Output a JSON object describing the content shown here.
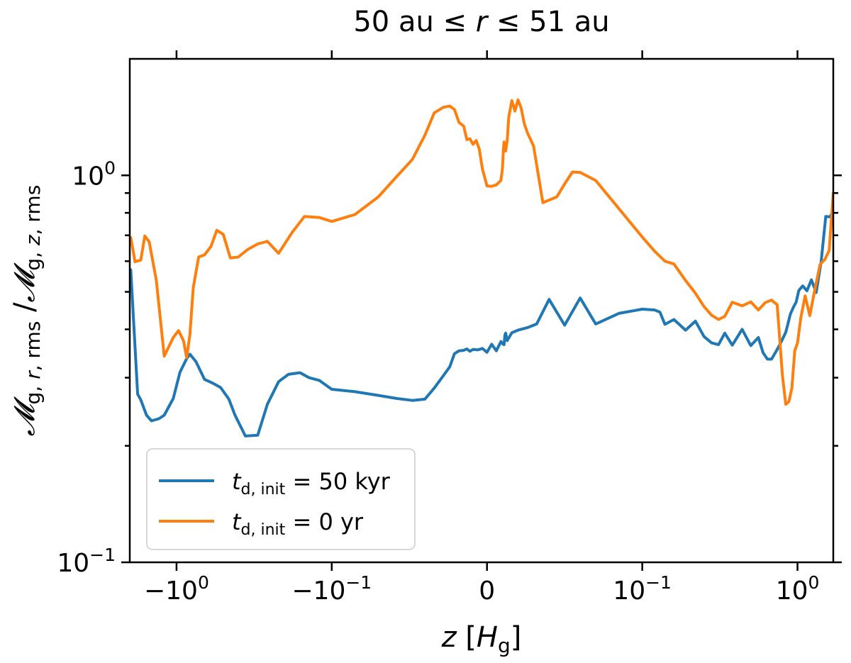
{
  "chart_data": {
    "type": "line",
    "title": "50 au ≤ r ≤ 51 au",
    "xlabel": "z [H_g]",
    "ylabel": "M_g,r,rms / M_g,z,rms",
    "x_scale": "symlog",
    "y_scale": "log",
    "xlim": [
      -2.0,
      1.7
    ],
    "ylim": [
      0.1,
      2.0
    ],
    "x_tick_labels": [
      {
        "value": -1.0,
        "base": "−10",
        "exp": "0"
      },
      {
        "value": -0.1,
        "base": "−10",
        "exp": "−1"
      },
      {
        "value": 0.0,
        "base": "0",
        "exp": ""
      },
      {
        "value": 0.1,
        "base": "10",
        "exp": "−1"
      },
      {
        "value": 1.0,
        "base": "10",
        "exp": "0"
      }
    ],
    "y_tick_labels": [
      {
        "value": 1.0,
        "base": "10",
        "exp": "0"
      },
      {
        "value": 0.1,
        "base": "10",
        "exp": "−1"
      }
    ],
    "grid": false,
    "legend_position": "lower-left",
    "series": [
      {
        "name": "t_d,init = 50 kyr",
        "legend": {
          "italic": "t",
          "sub": "d, init",
          "rest": " = 50 kyr"
        },
        "color": "#1f77b4",
        "x": [
          -1.97,
          -1.78,
          -1.7,
          -1.56,
          -1.45,
          -1.3,
          -1.2,
          -1.05,
          -0.95,
          -0.86,
          -0.82,
          -0.75,
          -0.66,
          -0.58,
          -0.52,
          -0.46,
          -0.42,
          -0.36,
          -0.3,
          -0.26,
          -0.22,
          -0.19,
          -0.16,
          -0.14,
          -0.12,
          -0.1,
          -0.085,
          -0.07,
          -0.058,
          -0.048,
          -0.04,
          -0.034,
          -0.028,
          -0.024,
          -0.021,
          -0.018,
          -0.015,
          -0.013,
          -0.011,
          -0.009,
          -0.006,
          -0.003,
          0.0,
          0.003,
          0.006,
          0.009,
          0.01,
          0.011,
          0.0115,
          0.012,
          0.013,
          0.014,
          0.016,
          0.02,
          0.026,
          0.032,
          0.04,
          0.05,
          0.06,
          0.07,
          0.085,
          0.1,
          0.12,
          0.13,
          0.14,
          0.16,
          0.19,
          0.22,
          0.25,
          0.28,
          0.31,
          0.34,
          0.38,
          0.44,
          0.5,
          0.56,
          0.6,
          0.64,
          0.68,
          0.72,
          0.76,
          0.8,
          0.84,
          0.87,
          0.9,
          0.94,
          0.98,
          1.02,
          1.08,
          1.15,
          1.23,
          1.32,
          1.42,
          1.52,
          1.62,
          1.7
        ],
        "y": [
          0.57,
          0.272,
          0.263,
          0.24,
          0.232,
          0.235,
          0.24,
          0.265,
          0.31,
          0.336,
          0.345,
          0.33,
          0.297,
          0.29,
          0.283,
          0.264,
          0.24,
          0.212,
          0.213,
          0.256,
          0.293,
          0.306,
          0.309,
          0.3,
          0.295,
          0.28,
          0.276,
          0.27,
          0.265,
          0.262,
          0.264,
          0.282,
          0.304,
          0.32,
          0.346,
          0.352,
          0.353,
          0.356,
          0.351,
          0.355,
          0.354,
          0.357,
          0.349,
          0.366,
          0.352,
          0.372,
          0.367,
          0.365,
          0.386,
          0.391,
          0.374,
          0.38,
          0.392,
          0.398,
          0.404,
          0.413,
          0.478,
          0.41,
          0.482,
          0.413,
          0.44,
          0.451,
          0.449,
          0.443,
          0.412,
          0.424,
          0.398,
          0.42,
          0.383,
          0.369,
          0.365,
          0.391,
          0.364,
          0.4,
          0.363,
          0.381,
          0.348,
          0.335,
          0.335,
          0.348,
          0.362,
          0.377,
          0.393,
          0.415,
          0.438,
          0.456,
          0.47,
          0.504,
          0.518,
          0.503,
          0.537,
          0.498,
          0.598,
          0.783,
          0.781,
          0.81
        ]
      },
      {
        "name": "t_d,init = 0 yr",
        "legend": {
          "italic": "t",
          "sub": "d, init",
          "rest": " = 0 yr"
        },
        "color": "#ff7f0e",
        "x": [
          -1.97,
          -1.85,
          -1.7,
          -1.6,
          -1.5,
          -1.35,
          -1.2,
          -1.05,
          -0.97,
          -0.9,
          -0.86,
          -0.82,
          -0.78,
          -0.72,
          -0.66,
          -0.6,
          -0.55,
          -0.5,
          -0.45,
          -0.4,
          -0.35,
          -0.3,
          -0.26,
          -0.22,
          -0.18,
          -0.15,
          -0.12,
          -0.1,
          -0.085,
          -0.07,
          -0.058,
          -0.048,
          -0.04,
          -0.034,
          -0.028,
          -0.024,
          -0.021,
          -0.018,
          -0.015,
          -0.013,
          -0.011,
          -0.009,
          -0.007,
          -0.005,
          -0.003,
          0.0,
          0.003,
          0.006,
          0.009,
          0.01,
          0.0105,
          0.011,
          0.012,
          0.013,
          0.014,
          0.016,
          0.018,
          0.02,
          0.022,
          0.024,
          0.026,
          0.03,
          0.036,
          0.045,
          0.05,
          0.055,
          0.06,
          0.07,
          0.085,
          0.1,
          0.12,
          0.14,
          0.16,
          0.19,
          0.22,
          0.25,
          0.28,
          0.31,
          0.34,
          0.38,
          0.44,
          0.5,
          0.56,
          0.62,
          0.68,
          0.74,
          0.8,
          0.84,
          0.88,
          0.92,
          0.96,
          1.0,
          1.05,
          1.12,
          1.2,
          1.3,
          1.4,
          1.5,
          1.6,
          1.7
        ],
        "y": [
          0.69,
          0.598,
          0.604,
          0.697,
          0.673,
          0.536,
          0.341,
          0.381,
          0.397,
          0.373,
          0.338,
          0.388,
          0.512,
          0.615,
          0.623,
          0.655,
          0.721,
          0.704,
          0.612,
          0.615,
          0.642,
          0.665,
          0.675,
          0.629,
          0.712,
          0.783,
          0.778,
          0.76,
          0.792,
          0.88,
          0.995,
          1.1,
          1.27,
          1.45,
          1.5,
          1.51,
          1.48,
          1.37,
          1.34,
          1.237,
          1.243,
          1.203,
          1.23,
          1.17,
          1.04,
          0.939,
          0.937,
          0.945,
          0.971,
          1.045,
          1.16,
          1.22,
          1.155,
          1.23,
          1.415,
          1.56,
          1.466,
          1.567,
          1.492,
          1.36,
          1.29,
          1.19,
          0.85,
          0.88,
          0.95,
          1.02,
          1.018,
          0.97,
          0.82,
          0.693,
          0.637,
          0.6,
          0.59,
          0.535,
          0.496,
          0.458,
          0.435,
          0.424,
          0.432,
          0.47,
          0.46,
          0.471,
          0.449,
          0.469,
          0.476,
          0.463,
          0.304,
          0.256,
          0.26,
          0.282,
          0.352,
          0.369,
          0.428,
          0.488,
          0.434,
          0.512,
          0.589,
          0.606,
          0.64,
          0.9
        ]
      }
    ]
  }
}
